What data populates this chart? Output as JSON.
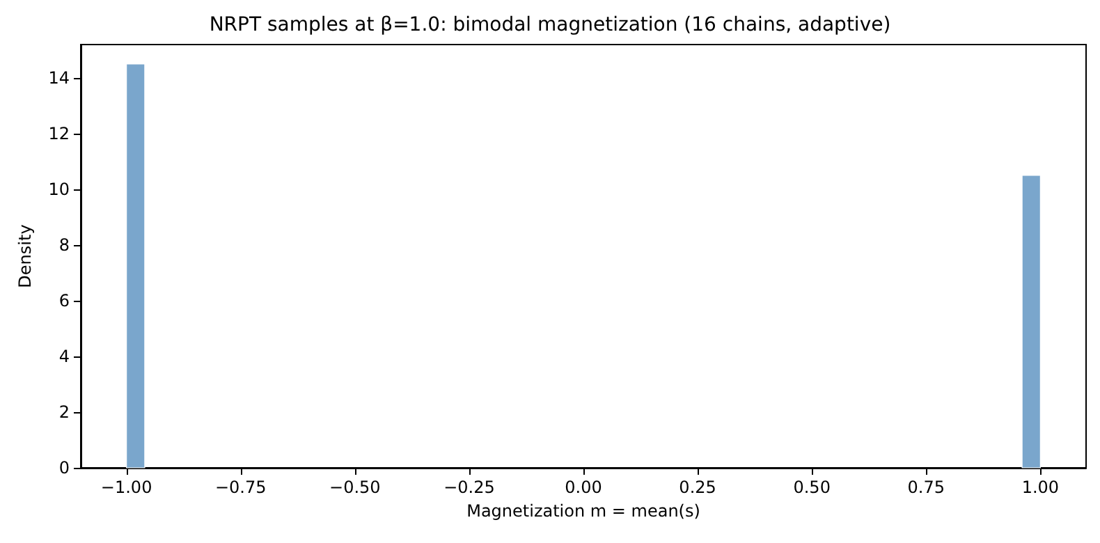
{
  "chart_data": {
    "type": "histogram",
    "title": "NRPT samples at β=1.0: bimodal magnetization (16 chains, adaptive)",
    "xlabel": "Magnetization m = mean(s)",
    "ylabel": "Density",
    "bins": [
      -1.0,
      -0.96,
      -0.92,
      -0.88,
      -0.84,
      -0.8,
      -0.76,
      -0.72,
      -0.68,
      -0.64,
      -0.6,
      -0.56,
      -0.52,
      -0.48,
      -0.44,
      -0.4,
      -0.36,
      -0.32,
      -0.28,
      -0.24,
      -0.2,
      -0.16,
      -0.12,
      -0.08,
      -0.04,
      0.0,
      0.04,
      0.08,
      0.12,
      0.16,
      0.2,
      0.24,
      0.28,
      0.32,
      0.36,
      0.4,
      0.44,
      0.48,
      0.52,
      0.56,
      0.6,
      0.64,
      0.68,
      0.72,
      0.76,
      0.8,
      0.84,
      0.88,
      0.92,
      0.96,
      1.0
    ],
    "values": [
      14.5,
      0,
      0,
      0,
      0,
      0,
      0,
      0,
      0,
      0,
      0,
      0,
      0,
      0,
      0,
      0,
      0,
      0,
      0,
      0,
      0,
      0,
      0,
      0,
      0,
      0,
      0,
      0,
      0,
      0,
      0,
      0,
      0,
      0,
      0,
      0,
      0,
      0,
      0,
      0,
      0,
      0,
      0,
      0,
      0,
      0,
      0,
      0,
      0,
      10.5
    ],
    "color": "#7aa6cc",
    "xlim": [
      -1.1,
      1.1
    ],
    "xticks": [
      {
        "value": -1.0,
        "label": "−1.00"
      },
      {
        "value": -0.75,
        "label": "−0.75"
      },
      {
        "value": -0.5,
        "label": "−0.50"
      },
      {
        "value": -0.25,
        "label": "−0.25"
      },
      {
        "value": 0,
        "label": "0.00"
      },
      {
        "value": 0.25,
        "label": "0.25"
      },
      {
        "value": 0.5,
        "label": "0.50"
      },
      {
        "value": 0.75,
        "label": "0.75"
      },
      {
        "value": 1.0,
        "label": "1.00"
      }
    ],
    "ylim": [
      0,
      15.2
    ],
    "yticks": [
      0,
      2,
      4,
      6,
      8,
      10,
      12,
      14
    ],
    "grid": false
  }
}
